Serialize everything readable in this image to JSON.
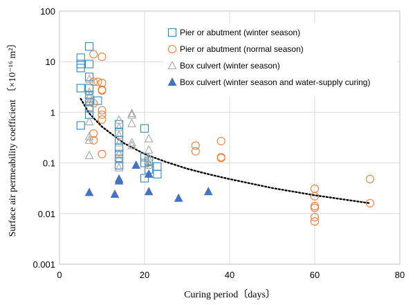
{
  "chart_data": {
    "type": "scatter",
    "title": "",
    "xlabel": "Curing period〔days〕",
    "ylabel": "Surface air permeability coefficient 〔×10⁻¹⁶ m²〕",
    "xlim": [
      0,
      80
    ],
    "ylim": [
      0.001,
      100
    ],
    "y_scale": "log",
    "x_ticks": [
      "0",
      "20",
      "40",
      "60",
      "80"
    ],
    "y_ticks": [
      "0.001",
      "0.01",
      "0.1",
      "1",
      "10",
      "100"
    ],
    "grid": true,
    "legend_position": "top-right",
    "series": [
      {
        "name": "Pier or abutment (winter season)",
        "marker": "square-open",
        "color": "#2E86C1",
        "points": [
          [
            5,
            12
          ],
          [
            5,
            9
          ],
          [
            5,
            7.5
          ],
          [
            5,
            3
          ],
          [
            5,
            0.55
          ],
          [
            7,
            20
          ],
          [
            7,
            9
          ],
          [
            7,
            5
          ],
          [
            7,
            3
          ],
          [
            7,
            2.2
          ],
          [
            7,
            1.9
          ],
          [
            7,
            1.6
          ],
          [
            7,
            1.2
          ],
          [
            7,
            0.9
          ],
          [
            9,
            1.7
          ],
          [
            14,
            0.58
          ],
          [
            14,
            0.4
          ],
          [
            14,
            0.28
          ],
          [
            14,
            0.2
          ],
          [
            14,
            0.15
          ],
          [
            14,
            0.12
          ],
          [
            14,
            0.09
          ],
          [
            20,
            0.48
          ],
          [
            20,
            0.13
          ],
          [
            20,
            0.1
          ],
          [
            20,
            0.05
          ],
          [
            21,
            0.11
          ],
          [
            21,
            0.075
          ],
          [
            23,
            0.085
          ],
          [
            23,
            0.06
          ]
        ]
      },
      {
        "name": "Pier or abutment (normal season)",
        "marker": "circle-open",
        "color": "#ED7D31",
        "points": [
          [
            8,
            14
          ],
          [
            8,
            4
          ],
          [
            8,
            1.5
          ],
          [
            8,
            0.38
          ],
          [
            8,
            0.28
          ],
          [
            9,
            4
          ],
          [
            10,
            12.5
          ],
          [
            10,
            3.8
          ],
          [
            10,
            2.8
          ],
          [
            10,
            2.7
          ],
          [
            10,
            1.1
          ],
          [
            10,
            0.9
          ],
          [
            10,
            0.72
          ],
          [
            10,
            0.15
          ],
          [
            32,
            0.22
          ],
          [
            32,
            0.17
          ],
          [
            38,
            0.27
          ],
          [
            38,
            0.13
          ],
          [
            38,
            0.125
          ],
          [
            60,
            0.031
          ],
          [
            60,
            0.022
          ],
          [
            60,
            0.014
          ],
          [
            60,
            0.013
          ],
          [
            60,
            0.0085
          ],
          [
            60,
            0.007
          ],
          [
            73,
            0.048
          ],
          [
            73,
            0.016
          ]
        ]
      },
      {
        "name": "Box culvert (winter season)",
        "marker": "triangle-open",
        "color": "#A6A6A6",
        "points": [
          [
            7,
            4.5
          ],
          [
            7,
            2.5
          ],
          [
            7,
            2
          ],
          [
            7,
            1.6
          ],
          [
            7,
            0.65
          ],
          [
            7,
            0.33
          ],
          [
            7,
            0.28
          ],
          [
            7,
            0.14
          ],
          [
            14,
            0.7
          ],
          [
            14,
            0.5
          ],
          [
            14,
            0.35
          ],
          [
            14,
            0.25
          ],
          [
            14,
            0.15
          ],
          [
            14,
            0.12
          ],
          [
            14,
            0.08
          ],
          [
            17,
            0.95
          ],
          [
            17,
            0.88
          ],
          [
            17,
            0.6
          ],
          [
            17,
            0.25
          ],
          [
            17,
            0.22
          ],
          [
            21,
            0.3
          ],
          [
            21,
            0.18
          ],
          [
            21,
            0.12
          ],
          [
            21,
            0.1
          ],
          [
            21,
            0.09
          ]
        ]
      },
      {
        "name": "Box culvert (winter season and water-supply curing)",
        "marker": "triangle-filled",
        "color": "#4472C4",
        "points": [
          [
            7,
            0.026
          ],
          [
            13,
            0.024
          ],
          [
            14,
            0.048
          ],
          [
            14,
            0.044
          ],
          [
            18,
            0.09
          ],
          [
            21,
            0.06
          ],
          [
            21,
            0.027
          ],
          [
            28,
            0.02
          ],
          [
            35,
            0.027
          ]
        ]
      }
    ],
    "trendline": {
      "style": "dotted",
      "color": "#000000",
      "x_range": [
        5,
        73
      ],
      "points": [
        [
          5,
          1.85
        ],
        [
          7,
          0.95
        ],
        [
          10,
          0.52
        ],
        [
          15,
          0.25
        ],
        [
          20,
          0.15
        ],
        [
          25,
          0.105
        ],
        [
          30,
          0.077
        ],
        [
          35,
          0.06
        ],
        [
          40,
          0.048
        ],
        [
          50,
          0.032
        ],
        [
          60,
          0.023
        ],
        [
          73,
          0.016
        ]
      ]
    }
  }
}
